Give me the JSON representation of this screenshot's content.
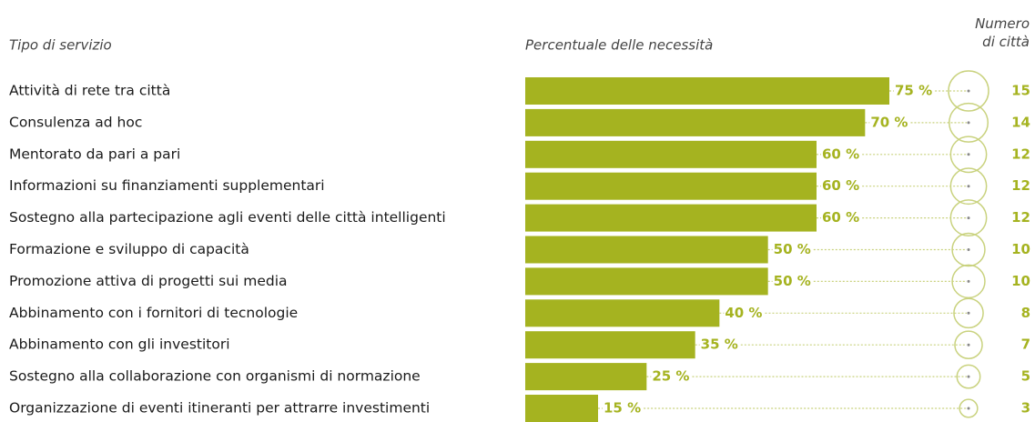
{
  "chart_data": {
    "type": "bar",
    "category_header": "Tipo di servizio",
    "value_header": "Percentuale delle necessità",
    "count_header": "Numero di città",
    "categories": [
      "Attività di rete tra città",
      "Consulenza ad hoc",
      "Mentorato da pari a pari",
      "Informazioni su finanziamenti supplementari",
      "Sostegno alla partecipazione agli eventi delle città intelligenti",
      "Formazione e sviluppo di capacità",
      "Promozione attiva di progetti sui media",
      "Abbinamento con i fornitori di tecnologie",
      "Abbinamento con gli investitori",
      "Sostegno alla collaborazione con organismi di normazione",
      "Organizzazione di eventi itineranti per attrarre investimenti"
    ],
    "values": [
      75,
      70,
      60,
      60,
      60,
      50,
      50,
      40,
      35,
      25,
      15
    ],
    "value_labels": [
      "75 %",
      "70 %",
      "60 %",
      "60 %",
      "60 %",
      "50 %",
      "50 %",
      "40 %",
      "35 %",
      "25 %",
      "15 %"
    ],
    "counts": [
      15,
      14,
      12,
      12,
      12,
      10,
      10,
      8,
      7,
      5,
      3
    ],
    "color": "#a5b320"
  }
}
